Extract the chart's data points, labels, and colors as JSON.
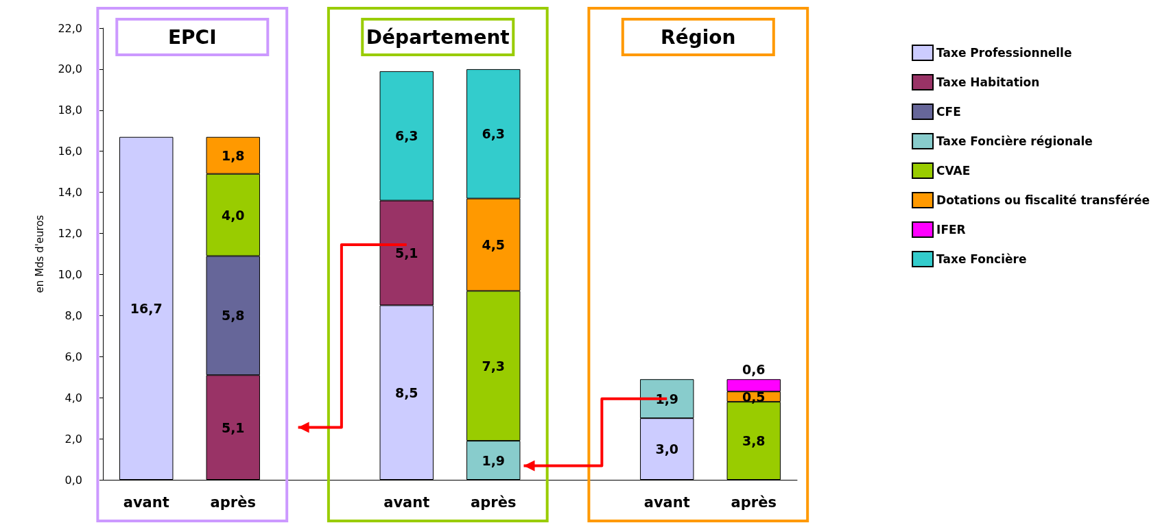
{
  "chart_data": {
    "type": "bar",
    "stacked": true,
    "ylabel": "en Mds d'euros",
    "categories": [
      "avant",
      "après",
      null,
      "avant",
      "après",
      null,
      "avant",
      "après"
    ],
    "series": [
      {
        "name": "Taxe Professionnelle",
        "color": "#ccccff",
        "values": [
          16.7,
          null,
          null,
          8.5,
          null,
          null,
          3.0,
          null
        ],
        "value_labels": [
          "16,7",
          null,
          null,
          "8,5",
          null,
          null,
          "3,0",
          null
        ]
      },
      {
        "name": "Taxe Habitation",
        "color": "#993366",
        "values": [
          null,
          5.1,
          null,
          5.1,
          null,
          null,
          null,
          null
        ],
        "value_labels": [
          null,
          "5,1",
          null,
          "5,1",
          null,
          null,
          null,
          null
        ]
      },
      {
        "name": "CFE",
        "color": "#666699",
        "values": [
          null,
          5.8,
          null,
          null,
          null,
          null,
          null,
          null
        ],
        "value_labels": [
          null,
          "5,8",
          null,
          null,
          null,
          null,
          null,
          null
        ]
      },
      {
        "name": "Taxe Foncière régionale",
        "color": "#88cccc",
        "values": [
          null,
          null,
          null,
          null,
          1.9,
          null,
          1.9,
          null
        ],
        "value_labels": [
          null,
          null,
          null,
          null,
          "1,9",
          null,
          "1,9",
          null
        ]
      },
      {
        "name": "CVAE",
        "color": "#99cc00",
        "values": [
          null,
          4.0,
          null,
          null,
          7.3,
          null,
          null,
          3.8
        ],
        "value_labels": [
          null,
          "4,0",
          null,
          null,
          "7,3",
          null,
          null,
          "3,8"
        ]
      },
      {
        "name": "Dotations ou fiscalité transférée",
        "color": "#ff9900",
        "values": [
          null,
          1.8,
          null,
          null,
          4.5,
          null,
          null,
          0.5
        ],
        "value_labels": [
          null,
          "1,8",
          null,
          null,
          "4,5",
          null,
          null,
          "0,5"
        ]
      },
      {
        "name": "IFER",
        "color": "#ff00ff",
        "values": [
          null,
          null,
          null,
          null,
          null,
          null,
          null,
          0.6
        ],
        "value_labels": [
          null,
          null,
          null,
          null,
          null,
          null,
          null,
          "0,6"
        ]
      },
      {
        "name": "Taxe Foncière",
        "color": "#33cccc",
        "values": [
          null,
          null,
          null,
          6.3,
          6.3,
          null,
          null,
          null
        ],
        "value_labels": [
          null,
          null,
          null,
          "6,3",
          "6,3",
          null,
          null,
          null
        ]
      }
    ],
    "annotations": [
      "EPCI",
      "Département",
      "Région"
    ],
    "ylim": [
      0,
      22
    ],
    "yticks": [
      {
        "value": 0,
        "label": "0,0"
      },
      {
        "value": 2,
        "label": "2,0"
      },
      {
        "value": 4,
        "label": "4,0"
      },
      {
        "value": 6,
        "label": "6,0"
      },
      {
        "value": 8,
        "label": "8,0"
      },
      {
        "value": 10,
        "label": "10,0"
      },
      {
        "value": 12,
        "label": "12,0"
      },
      {
        "value": 14,
        "label": "14,0"
      },
      {
        "value": 16,
        "label": "16,0"
      },
      {
        "value": 18,
        "label": "18,0"
      },
      {
        "value": 20,
        "label": "20,0"
      },
      {
        "value": 22,
        "label": "22,0"
      }
    ],
    "grid": false,
    "legend": "top right"
  }
}
